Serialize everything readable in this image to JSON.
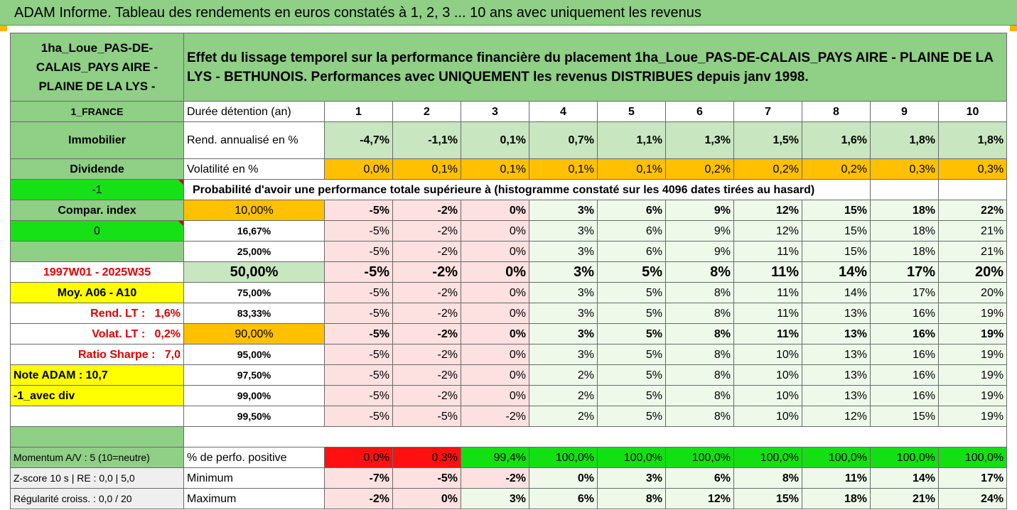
{
  "banner_title": "ADAM Informe. Tableau des rendements en euros constatés à 1, 2, 3 ... 10 ans avec uniquement les revenus",
  "side": {
    "asset_name": "1ha_Loue_PAS-DE-CALAIS_PAYS AIRE - PLAINE DE LA LYS -",
    "country": "1_FRANCE",
    "category": "Immobilier",
    "dividend_label": "Dividende",
    "dividend_value": "-1",
    "compar_label": "Compar. index",
    "compar_value": "0",
    "period": "1997W01 - 2025W35",
    "moy": "Moy. A06 - A10",
    "rend_lt_label": "Rend. LT :",
    "rend_lt_value": "1,6%",
    "volat_lt_label": "Volat. LT :",
    "volat_lt_value": "0,2%",
    "sharpe_label": "Ratio Sharpe :",
    "sharpe_value": "7,0",
    "note_adam": "Note ADAM : 10,7",
    "avec_div": "-1_avec div",
    "momentum": "Momentum A/V : 5 (10=neutre)",
    "zscore": "Z-score 10 s  | RE : 0,0 | 5,0",
    "regularite": "Régularité croiss. : 0,0 / 20"
  },
  "description": "Effet du lissage temporel sur la performance financière du placement 1ha_Loue_PAS-DE-CALAIS_PAYS AIRE - PLAINE DE LA LYS - BETHUNOIS. Performances avec UNIQUEMENT les revenus DISTRIBUES depuis janv 1998.",
  "duree_label": "Durée détention (an)",
  "years": [
    "1",
    "2",
    "3",
    "4",
    "5",
    "6",
    "7",
    "8",
    "9",
    "10"
  ],
  "rend_label": "Rend. annualisé en %",
  "rend": [
    "-4,7%",
    "-1,1%",
    "0,1%",
    "0,7%",
    "1,1%",
    "1,3%",
    "1,5%",
    "1,6%",
    "1,8%",
    "1,8%"
  ],
  "vol_label": "Volatilité en %",
  "vol": [
    "0,0%",
    "0,1%",
    "0,1%",
    "0,1%",
    "0,1%",
    "0,2%",
    "0,2%",
    "0,2%",
    "0,3%",
    "0,3%"
  ],
  "proba_label": "Probabilité d'avoir une performance totale supérieure à (histogramme constaté sur les 4096 dates tirées au hasard)",
  "quantiles": [
    {
      "p": "10,00%",
      "v": [
        "-5%",
        "-2%",
        "0%",
        "3%",
        "6%",
        "9%",
        "12%",
        "15%",
        "18%",
        "22%"
      ]
    },
    {
      "p": "16,67%",
      "v": [
        "-5%",
        "-2%",
        "0%",
        "3%",
        "6%",
        "9%",
        "12%",
        "15%",
        "18%",
        "21%"
      ]
    },
    {
      "p": "25,00%",
      "v": [
        "-5%",
        "-2%",
        "0%",
        "3%",
        "6%",
        "9%",
        "11%",
        "15%",
        "18%",
        "21%"
      ]
    },
    {
      "p": "50,00%",
      "v": [
        "-5%",
        "-2%",
        "0%",
        "3%",
        "5%",
        "8%",
        "11%",
        "14%",
        "17%",
        "20%"
      ]
    },
    {
      "p": "75,00%",
      "v": [
        "-5%",
        "-2%",
        "0%",
        "3%",
        "5%",
        "8%",
        "11%",
        "14%",
        "17%",
        "20%"
      ]
    },
    {
      "p": "83,33%",
      "v": [
        "-5%",
        "-2%",
        "0%",
        "3%",
        "5%",
        "8%",
        "11%",
        "13%",
        "16%",
        "19%"
      ]
    },
    {
      "p": "90,00%",
      "v": [
        "-5%",
        "-2%",
        "0%",
        "3%",
        "5%",
        "8%",
        "11%",
        "13%",
        "16%",
        "19%"
      ]
    },
    {
      "p": "95,00%",
      "v": [
        "-5%",
        "-2%",
        "0%",
        "3%",
        "5%",
        "8%",
        "10%",
        "13%",
        "16%",
        "19%"
      ]
    },
    {
      "p": "97,50%",
      "v": [
        "-5%",
        "-2%",
        "0%",
        "2%",
        "5%",
        "8%",
        "10%",
        "13%",
        "16%",
        "19%"
      ]
    },
    {
      "p": "99,00%",
      "v": [
        "-5%",
        "-2%",
        "0%",
        "2%",
        "5%",
        "8%",
        "10%",
        "13%",
        "16%",
        "19%"
      ]
    },
    {
      "p": "99,50%",
      "v": [
        "-5%",
        "-5%",
        "-2%",
        "2%",
        "5%",
        "8%",
        "10%",
        "12%",
        "15%",
        "19%"
      ]
    }
  ],
  "pos_label": "% de perfo. positive",
  "pos": [
    "0,0%",
    "0,3%",
    "99,4%",
    "100,0%",
    "100,0%",
    "100,0%",
    "100,0%",
    "100,0%",
    "100,0%",
    "100,0%"
  ],
  "min_label": "Minimum",
  "min": [
    "-7%",
    "-5%",
    "-2%",
    "0%",
    "3%",
    "6%",
    "8%",
    "11%",
    "14%",
    "17%"
  ],
  "max_label": "Maximum",
  "max": [
    "-2%",
    "0%",
    "3%",
    "6%",
    "8%",
    "12%",
    "15%",
    "18%",
    "21%",
    "24%"
  ],
  "colors": {
    "header_green": "#8fcf86",
    "bright_green": "#16e016",
    "yellow": "#ffff00",
    "orange": "#ffc000",
    "pale_green": "#c8e6c0",
    "pink": "#fde0e0",
    "mint": "#eef9ea",
    "red": "#ff1010"
  }
}
